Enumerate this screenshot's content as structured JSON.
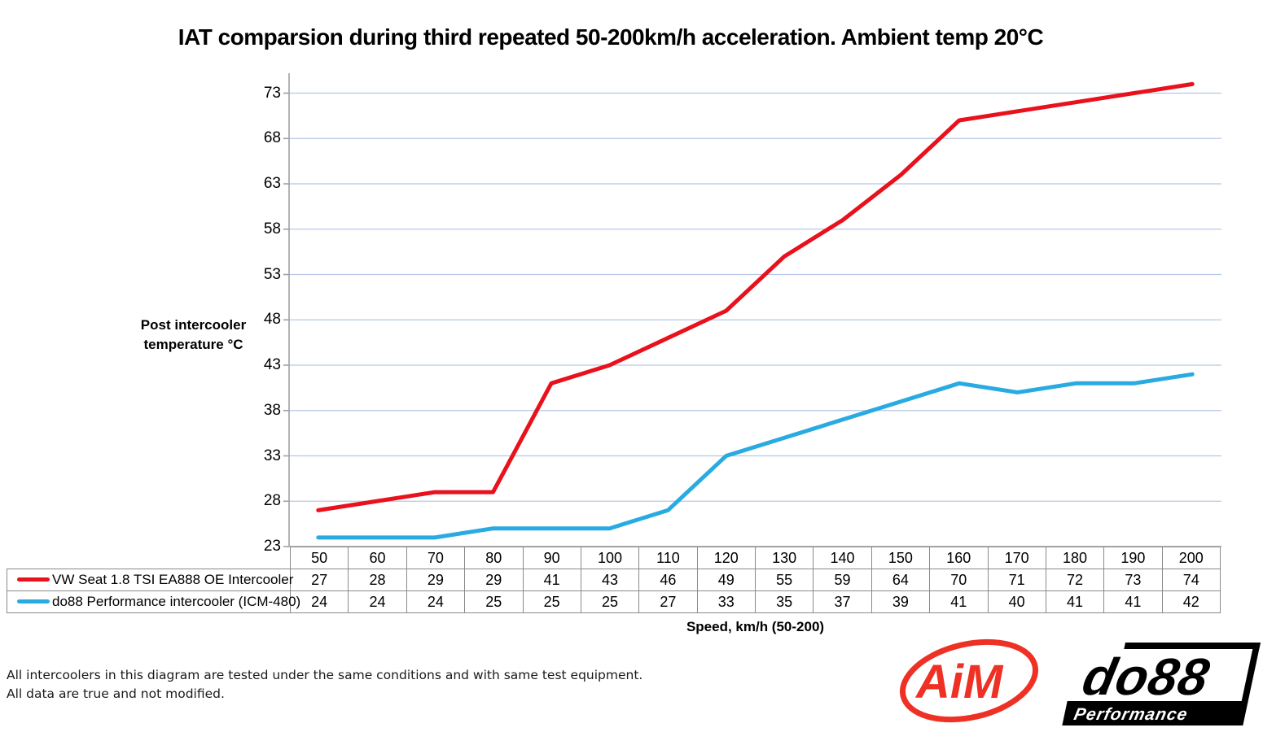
{
  "title": "IAT comparsion during third repeated 50-200km/h acceleration. Ambient temp 20°C",
  "chart_data": {
    "type": "line",
    "x": [
      50,
      60,
      70,
      80,
      90,
      100,
      110,
      120,
      130,
      140,
      150,
      160,
      170,
      180,
      190,
      200
    ],
    "series": [
      {
        "name": "VW Seat 1.8 TSI EA888 OE Intercooler",
        "color": "#e8111c",
        "values": [
          27,
          28,
          29,
          29,
          41,
          43,
          46,
          49,
          55,
          59,
          64,
          70,
          71,
          72,
          73,
          74
        ]
      },
      {
        "name": "do88 Performance intercooler (ICM-480)",
        "color": "#29abe2",
        "values": [
          24,
          24,
          24,
          25,
          25,
          25,
          27,
          33,
          35,
          37,
          39,
          41,
          40,
          41,
          41,
          42
        ]
      }
    ],
    "y_ticks": [
      23,
      28,
      33,
      38,
      43,
      48,
      53,
      58,
      63,
      68,
      73
    ],
    "ylim": [
      23,
      75.2
    ],
    "ylabel_line1": "Post intercooler",
    "ylabel_line2": "temperature °C",
    "xlabel": "Speed, km/h (50-200)",
    "grid": "horizontal gridlines on",
    "legend_position": "table rows below chart",
    "gridline_color": "#b7c7e5",
    "axis_color": "#a0a0a0"
  },
  "footer": {
    "line1": "All intercoolers in this diagram are tested under the same conditions and with same test equipment.",
    "line2": "All data are true and not modified."
  },
  "logos": {
    "aim_text": "AiM",
    "aim_color": "#ee3124",
    "do88_text": "do88",
    "do88_sub": "Performance",
    "do88_color": "#000000"
  }
}
